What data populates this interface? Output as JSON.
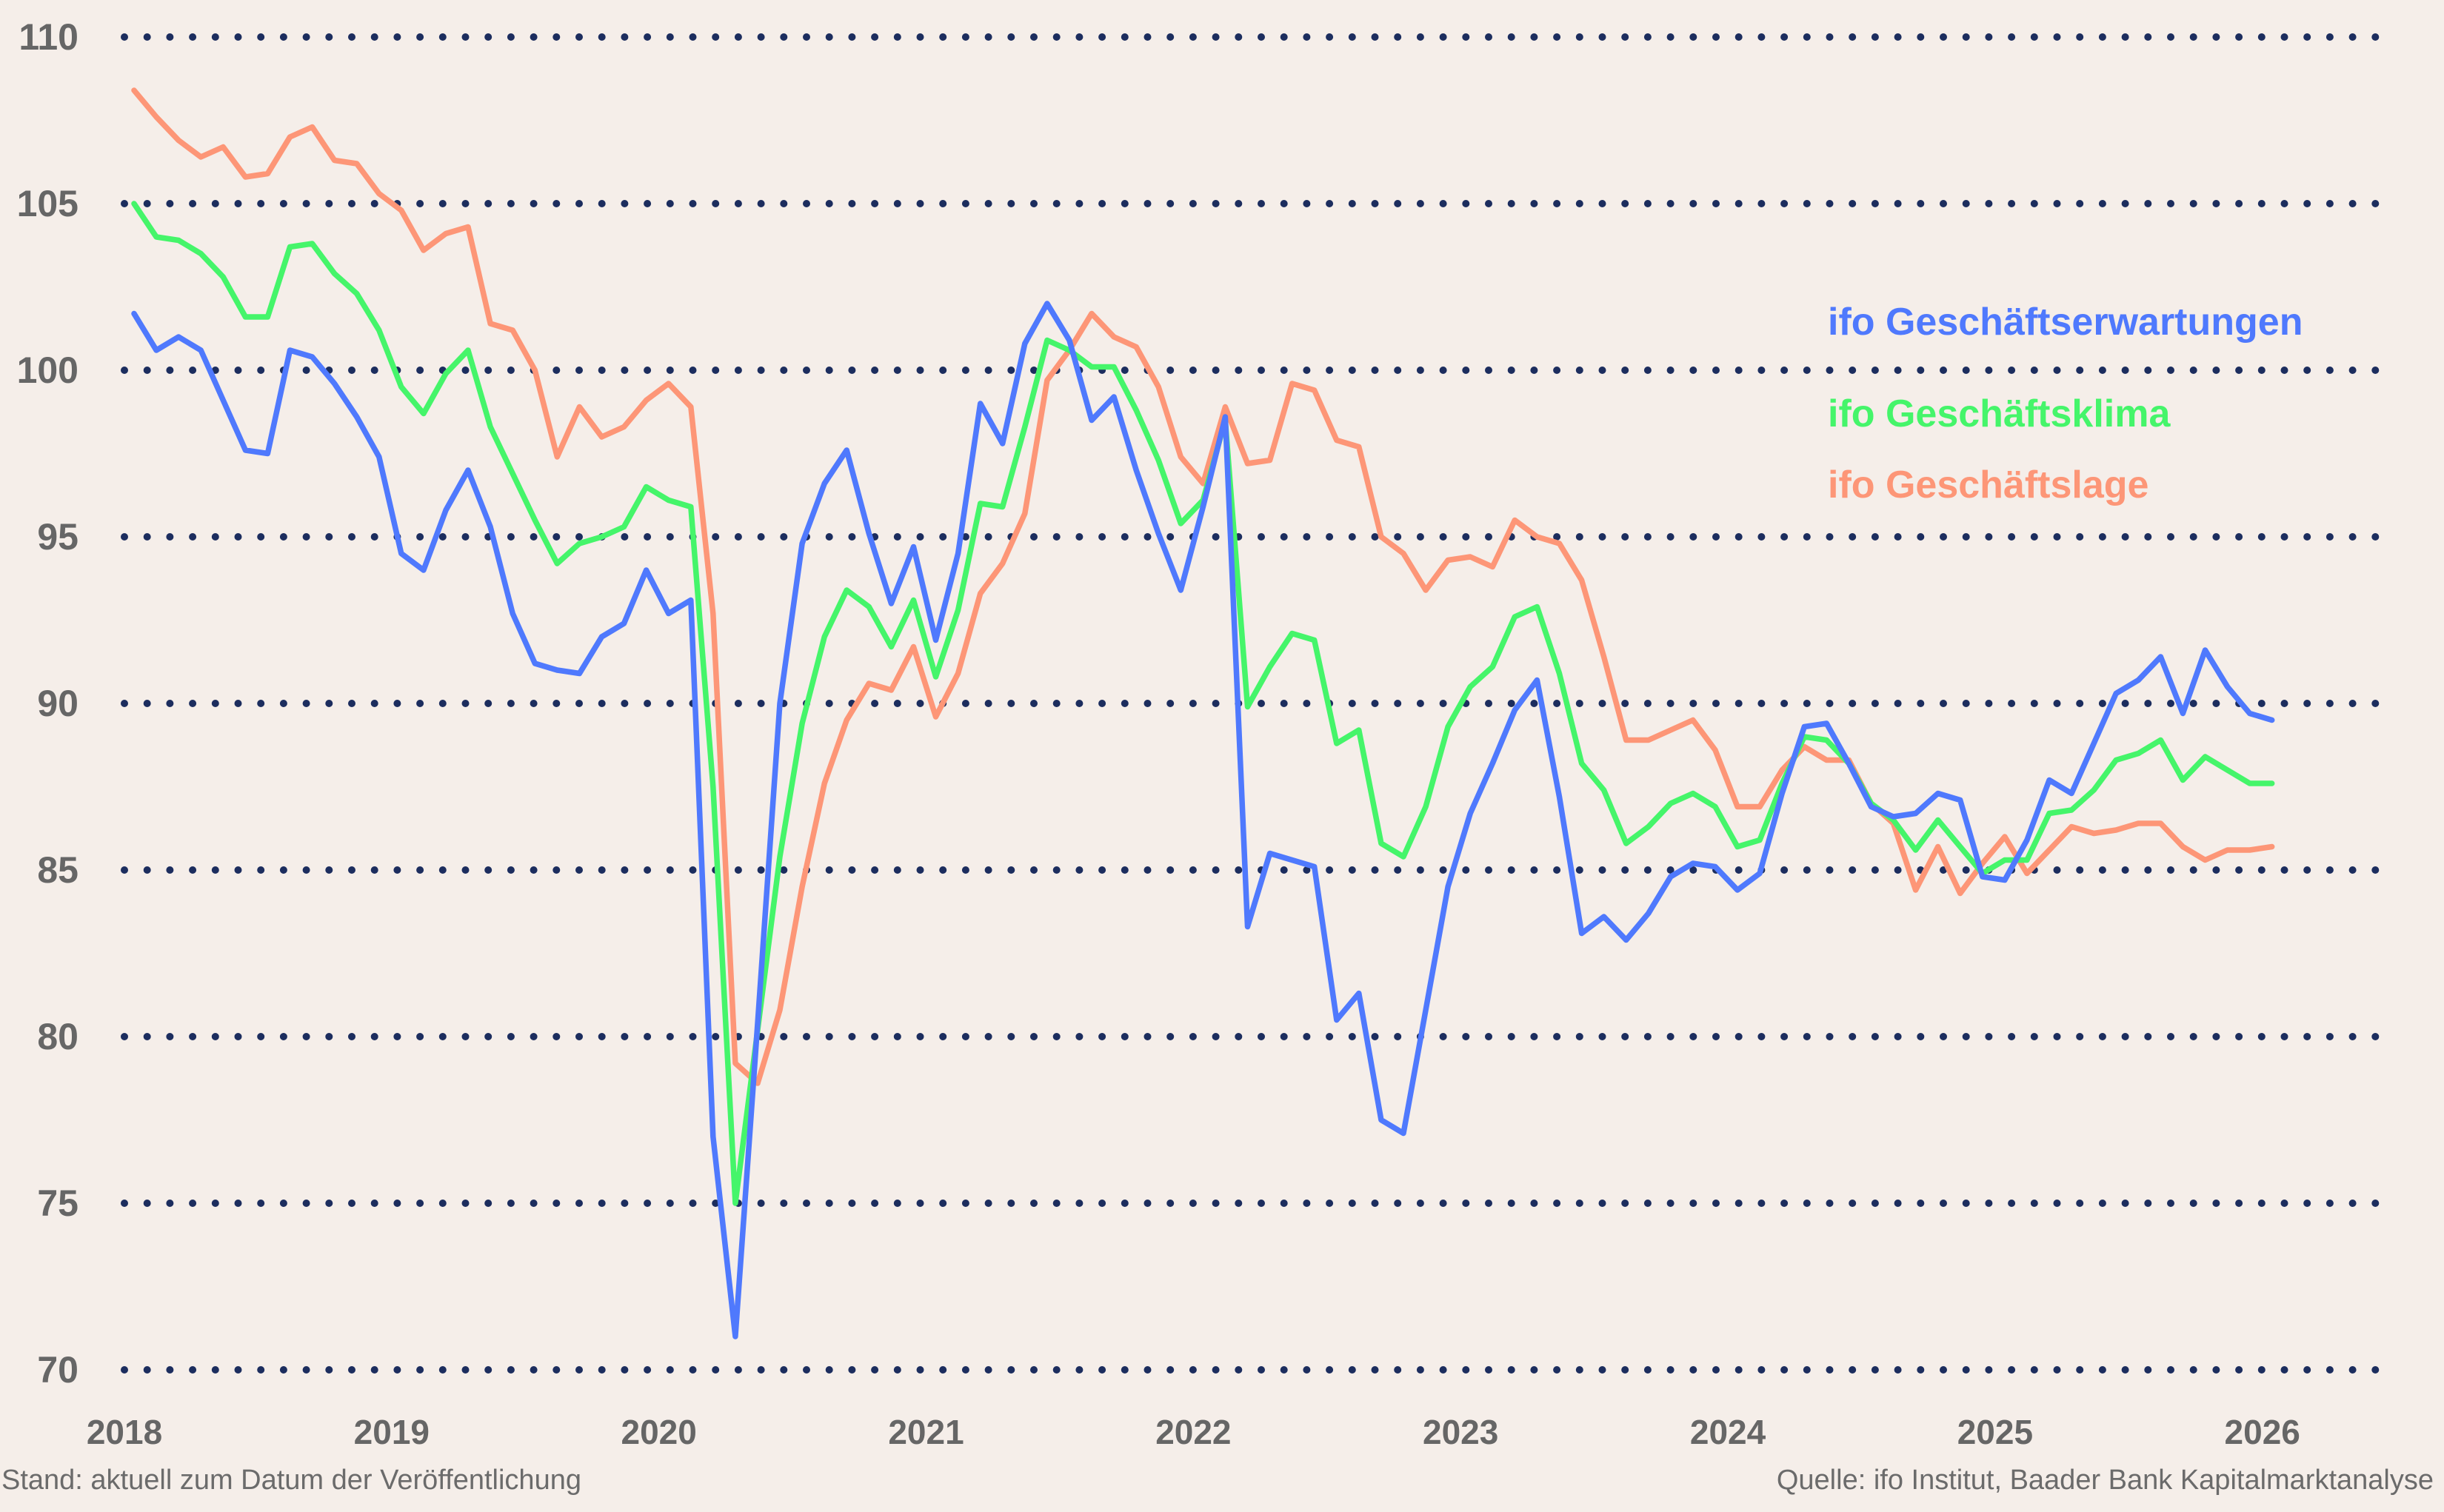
{
  "chart_data": {
    "type": "line",
    "title": "",
    "xlabel": "",
    "ylabel": "",
    "x_start": "2018-01",
    "x_frequency": "monthly",
    "x_tick_labels": [
      "2018",
      "2019",
      "2020",
      "2021",
      "2022",
      "2023",
      "2024",
      "2025",
      "2026"
    ],
    "y_tick_labels": [
      "70",
      "75",
      "80",
      "85",
      "90",
      "95",
      "100",
      "105",
      "110"
    ],
    "ylim": [
      70,
      110
    ],
    "grid": "horizontal dotted",
    "legend_placement": "right",
    "series": [
      {
        "name": "ifo Geschäftserwartungen",
        "color": "#4f79fd",
        "values": [
          101.7,
          100.6,
          101.0,
          100.6,
          99.1,
          97.6,
          97.5,
          100.6,
          100.4,
          99.6,
          98.6,
          97.4,
          94.5,
          94.0,
          95.8,
          97.0,
          95.3,
          92.7,
          91.2,
          91.0,
          90.9,
          92.0,
          92.4,
          94.0,
          92.7,
          93.1,
          77.0,
          71.0,
          80.4,
          90.0,
          94.8,
          96.6,
          97.6,
          95.1,
          93.0,
          94.7,
          91.9,
          94.5,
          99.0,
          97.8,
          100.8,
          102.0,
          100.9,
          98.5,
          99.2,
          97.0,
          95.1,
          93.4,
          95.9,
          98.6,
          83.3,
          85.5,
          85.3,
          85.1,
          80.5,
          81.3,
          77.5,
          77.1,
          80.8,
          84.5,
          86.7,
          88.2,
          89.8,
          90.7,
          87.2,
          83.1,
          83.6,
          82.9,
          83.7,
          84.8,
          85.2,
          85.1,
          84.4,
          84.9,
          87.3,
          89.3,
          89.4,
          88.2,
          86.9,
          86.6,
          86.7,
          87.3,
          87.1,
          84.8,
          84.7,
          85.9,
          87.7,
          87.3,
          88.8,
          90.3,
          90.7,
          91.4,
          89.7,
          91.6,
          90.5,
          89.7,
          89.5
        ]
      },
      {
        "name": "ifo Geschäftsklima",
        "color": "#45f56a",
        "values": [
          105.0,
          104.0,
          103.9,
          103.5,
          102.8,
          101.6,
          101.6,
          103.7,
          103.8,
          102.9,
          102.3,
          101.2,
          99.5,
          98.7,
          99.9,
          100.6,
          98.3,
          96.9,
          95.5,
          94.2,
          94.8,
          95.0,
          95.3,
          96.5,
          96.1,
          95.9,
          87.5,
          75.0,
          80.2,
          85.4,
          89.4,
          92.0,
          93.4,
          92.9,
          91.7,
          93.1,
          90.8,
          92.8,
          96.0,
          95.9,
          98.3,
          100.9,
          100.6,
          100.1,
          100.1,
          98.8,
          97.3,
          95.4,
          96.1,
          98.5,
          89.9,
          91.1,
          92.1,
          91.9,
          88.8,
          89.2,
          85.8,
          85.4,
          86.9,
          89.3,
          90.5,
          91.1,
          92.6,
          92.9,
          90.9,
          88.2,
          87.4,
          85.8,
          86.3,
          87.0,
          87.3,
          86.9,
          85.7,
          85.9,
          87.6,
          89.0,
          88.9,
          88.2,
          87.0,
          86.5,
          85.6,
          86.5,
          85.7,
          84.9,
          85.3,
          85.3,
          86.7,
          86.8,
          87.4,
          88.3,
          88.5,
          88.9,
          87.7,
          88.4,
          88.0,
          87.6,
          87.6
        ]
      },
      {
        "name": "ifo Geschäftslage",
        "color": "#fd9677",
        "values": [
          108.4,
          107.6,
          106.9,
          106.4,
          106.7,
          105.8,
          105.9,
          107.0,
          107.3,
          106.3,
          106.2,
          105.3,
          104.8,
          103.6,
          104.1,
          104.3,
          101.4,
          101.2,
          100.0,
          97.4,
          98.9,
          98.0,
          98.3,
          99.1,
          99.6,
          98.9,
          92.7,
          79.2,
          78.6,
          80.8,
          84.5,
          87.6,
          89.5,
          90.6,
          90.4,
          91.7,
          89.6,
          90.9,
          93.3,
          94.2,
          95.7,
          99.7,
          100.6,
          101.7,
          101.0,
          100.7,
          99.5,
          97.4,
          96.6,
          98.9,
          97.2,
          97.3,
          99.6,
          99.4,
          97.9,
          97.7,
          95.0,
          94.5,
          93.4,
          94.3,
          94.4,
          94.1,
          95.5,
          95.0,
          94.8,
          93.7,
          91.4,
          88.9,
          88.9,
          89.2,
          89.5,
          88.6,
          86.9,
          86.9,
          88.0,
          88.7,
          88.3,
          88.3,
          87.0,
          86.4,
          84.4,
          85.7,
          84.3,
          85.2,
          86.0,
          84.9,
          85.6,
          86.3,
          86.1,
          86.2,
          86.4,
          86.4,
          85.7,
          85.3,
          85.6,
          85.6,
          85.7
        ]
      }
    ]
  },
  "colors": {
    "background": "#f5eee9",
    "grid": "#1c2d5e",
    "text": "#666666"
  },
  "footer": {
    "left": "Stand: aktuell zum Datum der Veröffentlichung",
    "right": "Quelle: ifo Institut, Baader Bank Kapitalmarktanalyse"
  }
}
